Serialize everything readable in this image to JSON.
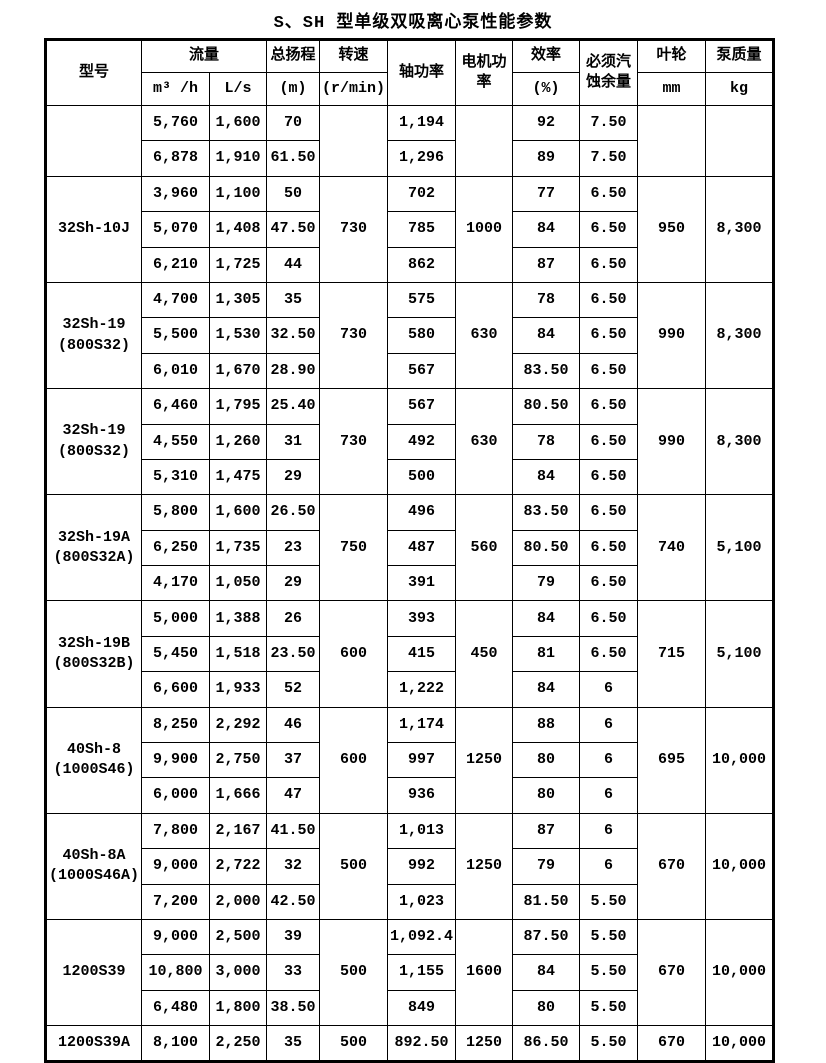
{
  "title": "S、SH 型单级双吸离心泵性能参数",
  "table": {
    "header": {
      "model": "型号",
      "flow": "流量",
      "flow_m3h": "m³ /h",
      "flow_ls": "L/s",
      "head": "总扬程",
      "head_unit": "(m)",
      "speed": "转速",
      "speed_unit": "(r/min)",
      "shaft_power": "轴功率",
      "motor_power_line1": "电机功",
      "motor_power_line2": "率",
      "efficiency": "效率",
      "efficiency_unit": "(%)",
      "npsh_line1": "必须汽",
      "npsh_line2": "蚀余量",
      "impeller": "叶轮",
      "impeller_unit": "mm",
      "mass": "泵质量",
      "mass_unit": "kg"
    },
    "groups": [
      {
        "model_lines": [
          ""
        ],
        "speed": "",
        "motor": "",
        "impeller": "",
        "mass": "",
        "rows": [
          [
            "5,760",
            "1,600",
            "70",
            "1,194",
            "92",
            "7.50"
          ],
          [
            "6,878",
            "1,910",
            "61.50",
            "1,296",
            "89",
            "7.50"
          ]
        ]
      },
      {
        "model_lines": [
          "32Sh-10J"
        ],
        "speed": "730",
        "motor": "1000",
        "impeller": "950",
        "mass": "8,300",
        "rows": [
          [
            "3,960",
            "1,100",
            "50",
            "702",
            "77",
            "6.50"
          ],
          [
            "5,070",
            "1,408",
            "47.50",
            "785",
            "84",
            "6.50"
          ],
          [
            "6,210",
            "1,725",
            "44",
            "862",
            "87",
            "6.50"
          ]
        ]
      },
      {
        "model_lines": [
          "32Sh-19",
          "(800S32)"
        ],
        "speed": "730",
        "motor": "630",
        "impeller": "990",
        "mass": "8,300",
        "rows": [
          [
            "4,700",
            "1,305",
            "35",
            "575",
            "78",
            "6.50"
          ],
          [
            "5,500",
            "1,530",
            "32.50",
            "580",
            "84",
            "6.50"
          ],
          [
            "6,010",
            "1,670",
            "28.90",
            "567",
            "83.50",
            "6.50"
          ]
        ]
      },
      {
        "model_lines": [
          "32Sh-19",
          "(800S32)"
        ],
        "speed": "730",
        "motor": "630",
        "impeller": "990",
        "mass": "8,300",
        "rows": [
          [
            "6,460",
            "1,795",
            "25.40",
            "567",
            "80.50",
            "6.50"
          ],
          [
            "4,550",
            "1,260",
            "31",
            "492",
            "78",
            "6.50"
          ],
          [
            "5,310",
            "1,475",
            "29",
            "500",
            "84",
            "6.50"
          ]
        ]
      },
      {
        "model_lines": [
          "32Sh-19A",
          "(800S32A)"
        ],
        "speed": "750",
        "motor": "560",
        "impeller": "740",
        "mass": "5,100",
        "rows": [
          [
            "5,800",
            "1,600",
            "26.50",
            "496",
            "83.50",
            "6.50"
          ],
          [
            "6,250",
            "1,735",
            "23",
            "487",
            "80.50",
            "6.50"
          ],
          [
            "4,170",
            "1,050",
            "29",
            "391",
            "79",
            "6.50"
          ]
        ]
      },
      {
        "model_lines": [
          "32Sh-19B",
          "(800S32B)"
        ],
        "speed": "600",
        "motor": "450",
        "impeller": "715",
        "mass": "5,100",
        "rows": [
          [
            "5,000",
            "1,388",
            "26",
            "393",
            "84",
            "6.50"
          ],
          [
            "5,450",
            "1,518",
            "23.50",
            "415",
            "81",
            "6.50"
          ],
          [
            "6,600",
            "1,933",
            "52",
            "1,222",
            "84",
            "6"
          ]
        ]
      },
      {
        "model_lines": [
          "40Sh-8",
          "(1000S46)"
        ],
        "speed": "600",
        "motor": "1250",
        "impeller": "695",
        "mass": "10,000",
        "rows": [
          [
            "8,250",
            "2,292",
            "46",
            "1,174",
            "88",
            "6"
          ],
          [
            "9,900",
            "2,750",
            "37",
            "997",
            "80",
            "6"
          ],
          [
            "6,000",
            "1,666",
            "47",
            "936",
            "80",
            "6"
          ]
        ]
      },
      {
        "model_lines": [
          "40Sh-8A",
          "(1000S46A)"
        ],
        "speed": "500",
        "motor": "1250",
        "impeller": "670",
        "mass": "10,000",
        "rows": [
          [
            "7,800",
            "2,167",
            "41.50",
            "1,013",
            "87",
            "6"
          ],
          [
            "9,000",
            "2,722",
            "32",
            "992",
            "79",
            "6"
          ],
          [
            "7,200",
            "2,000",
            "42.50",
            "1,023",
            "81.50",
            "5.50"
          ]
        ]
      },
      {
        "model_lines": [
          "1200S39"
        ],
        "speed": "500",
        "motor": "1600",
        "impeller": "670",
        "mass": "10,000",
        "rows": [
          [
            "9,000",
            "2,500",
            "39",
            "1,092.4",
            "87.50",
            "5.50"
          ],
          [
            "10,800",
            "3,000",
            "33",
            "1,155",
            "84",
            "5.50"
          ],
          [
            "6,480",
            "1,800",
            "38.50",
            "849",
            "80",
            "5.50"
          ]
        ]
      },
      {
        "model_lines": [
          "1200S39A"
        ],
        "speed": "500",
        "motor": "1250",
        "impeller": "670",
        "mass": "10,000",
        "rows": [
          [
            "8,100",
            "2,250",
            "35",
            "892.50",
            "86.50",
            "5.50"
          ]
        ]
      }
    ]
  }
}
